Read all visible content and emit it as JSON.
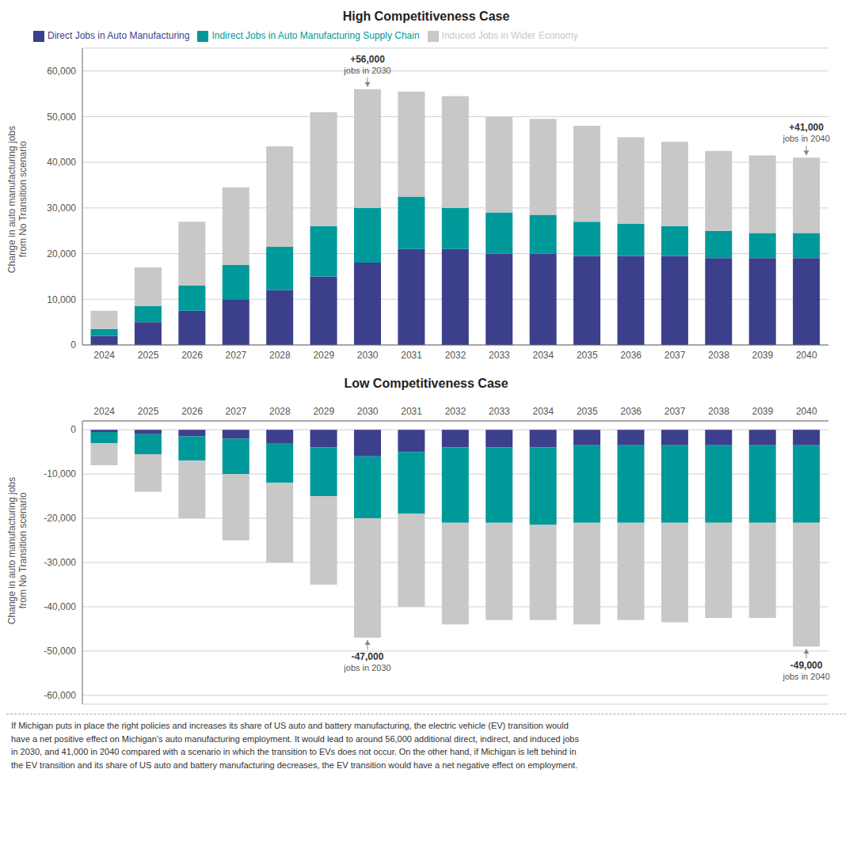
{
  "chart_data": [
    {
      "type": "bar",
      "title": "High Competitiveness Case",
      "y_label": "Change in auto manufacturing jobs\nfrom No Transition scenario",
      "categories": [
        "2024",
        "2025",
        "2026",
        "2027",
        "2028",
        "2029",
        "2030",
        "2031",
        "2032",
        "2033",
        "2034",
        "2035",
        "2036",
        "2037",
        "2038",
        "2039",
        "2040"
      ],
      "series": [
        {
          "name": "Direct Jobs in Auto Manufacturing",
          "color": "#3B3F8C",
          "values": [
            2000,
            5000,
            7500,
            10000,
            12000,
            15000,
            18000,
            21000,
            21000,
            20000,
            20000,
            19500,
            19500,
            19500,
            19000,
            19000,
            19000
          ]
        },
        {
          "name": "Indirect Jobs in Auto Manufacturing Supply Chain",
          "color": "#009999",
          "values": [
            1500,
            3500,
            5500,
            7500,
            9500,
            11000,
            12000,
            11500,
            9000,
            9000,
            8500,
            7500,
            7000,
            6500,
            6000,
            5500,
            5500
          ]
        },
        {
          "name": "Induced Jobs in Wider Economy",
          "color": "#C8C8C8",
          "values": [
            4000,
            8500,
            14000,
            17000,
            22000,
            25000,
            26000,
            23000,
            24500,
            21000,
            21000,
            21000,
            19000,
            18500,
            17500,
            17000,
            16500
          ]
        }
      ],
      "stacked": true,
      "ylim": [
        0,
        65000
      ],
      "yticks": [
        0,
        {
          "value": 10000,
          "label": "10,000"
        },
        {
          "value": 20000,
          "label": "20,000"
        },
        {
          "value": 30000,
          "label": "30,000"
        },
        {
          "value": 40000,
          "label": "40,000"
        },
        {
          "value": 50000,
          "label": "50,000"
        },
        {
          "value": 60000,
          "label": "60,000"
        }
      ],
      "grid": true,
      "legend": "upper left",
      "annotations": [
        {
          "text": "+56,000\njobs in 2030",
          "x": "2030"
        },
        {
          "text": "+41,000\njobs in 2040",
          "x": "2040"
        }
      ]
    },
    {
      "type": "bar",
      "title": "Low Competitiveness Case",
      "y_label": "Change in auto manufacturing jobs\nfrom No Transition scenario",
      "categories": [
        "2024",
        "2025",
        "2026",
        "2027",
        "2028",
        "2029",
        "2030",
        "2031",
        "2032",
        "2033",
        "2034",
        "2035",
        "2036",
        "2037",
        "2038",
        "2039",
        "2040"
      ],
      "series": [
        {
          "name": "Direct Jobs in Auto Manufacturing",
          "color": "#3B3F8C",
          "values": [
            -500,
            -1000,
            -1500,
            -2000,
            -3000,
            -4000,
            -6000,
            -5000,
            -4000,
            -4000,
            -4000,
            -3500,
            -3500,
            -3500,
            -3500,
            -3500,
            -3500
          ]
        },
        {
          "name": "Indirect Jobs in Auto Manufacturing Supply Chain",
          "color": "#009999",
          "values": [
            -2500,
            -4500,
            -5500,
            -8000,
            -9000,
            -11000,
            -14000,
            -14000,
            -17000,
            -17000,
            -17500,
            -17500,
            -17500,
            -17500,
            -17500,
            -17500,
            -17500
          ]
        },
        {
          "name": "Induced Jobs in Wider Economy",
          "color": "#C8C8C8",
          "values": [
            -5000,
            -8500,
            -13000,
            -15000,
            -18000,
            -20000,
            -27000,
            -21000,
            -23000,
            -22000,
            -21500,
            -23000,
            -22000,
            -22500,
            -21500,
            -21500,
            -28000
          ]
        }
      ],
      "stacked": true,
      "ylim": [
        -62000,
        2000
      ],
      "yticks": [
        {
          "value": -60000,
          "label": "-60,000"
        },
        {
          "value": -50000,
          "label": "-50,000"
        },
        {
          "value": -40000,
          "label": "-40,000"
        },
        {
          "value": -30000,
          "label": "-30,000"
        },
        {
          "value": -20000,
          "label": "-20,000"
        },
        {
          "value": -10000,
          "label": "-10,000"
        },
        0
      ],
      "grid": true,
      "annotations": [
        {
          "text": "-47,000\njobs in 2030",
          "x": "2030"
        },
        {
          "text": "-49,000\njobs in 2040",
          "x": "2040"
        }
      ]
    }
  ],
  "caption": "If Michigan puts in place the right policies and increases its share of US auto and battery manufacturing, the electric vehicle (EV) transition would\nhave a net positive effect on Michigan’s auto manufacturing employment. It would lead to around 56,000 additional direct, indirect, and induced jobs\nin 2030, and 41,000 in 2040 compared with a scenario in which the transition to EVs does not occur. On the other hand, if Michigan is left behind in\nthe EV transition and its share of US auto and battery manufacturing decreases, the EV transition would have a net negative effect on employment."
}
